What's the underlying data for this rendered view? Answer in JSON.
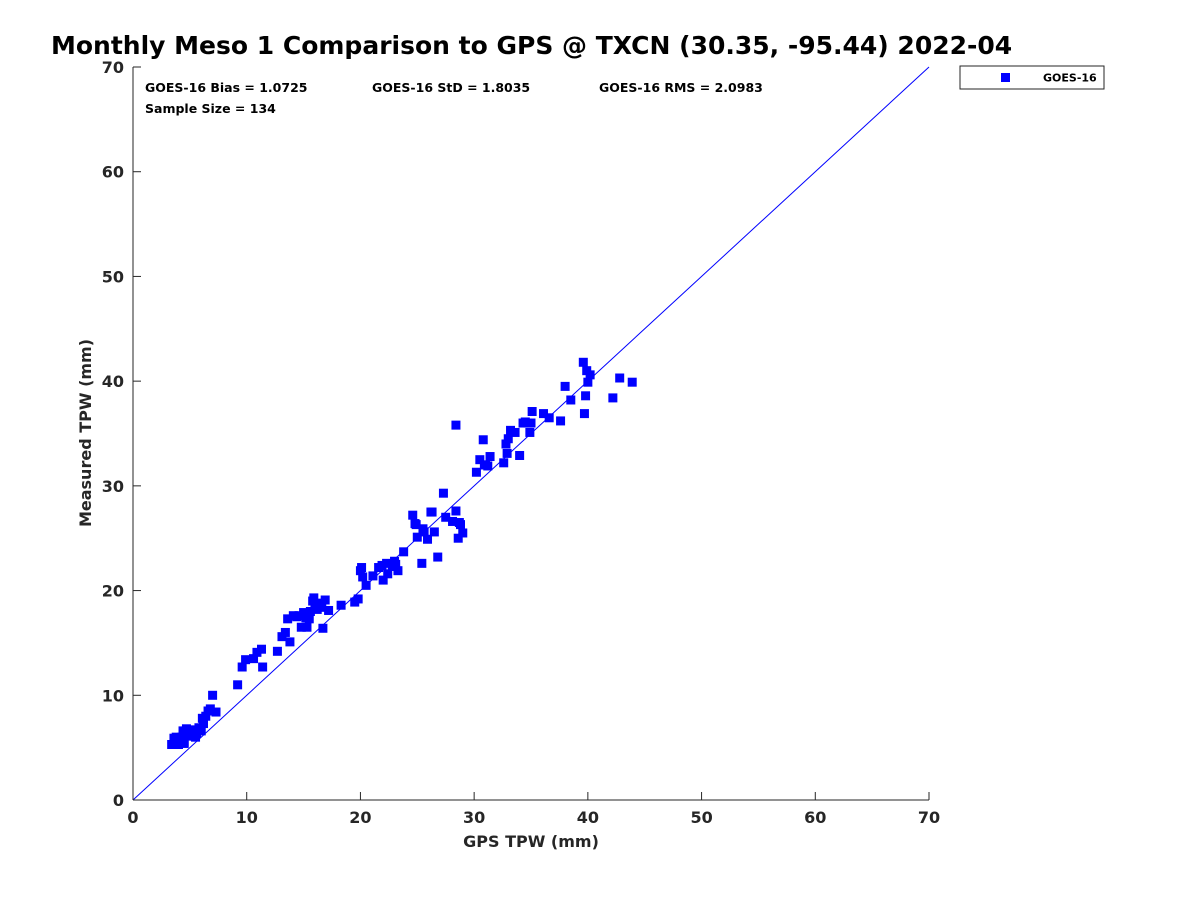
{
  "chart_data": {
    "type": "scatter",
    "title": "Monthly Meso 1 Comparison to GPS @ TXCN (30.35, -95.44) 2022-04",
    "xlabel": "GPS TPW (mm)",
    "ylabel": "Measured TPW (mm)",
    "xlim": [
      0,
      70
    ],
    "ylim": [
      0,
      70
    ],
    "xticks": [
      0,
      10,
      20,
      30,
      40,
      50,
      60,
      70
    ],
    "yticks": [
      0,
      10,
      20,
      30,
      40,
      50,
      60,
      70
    ],
    "grid": false,
    "legend_position": "top-right-outside",
    "reference_line": {
      "from": [
        0,
        0
      ],
      "to": [
        70,
        70
      ],
      "color": "#0000ff"
    },
    "stats": {
      "bias": "GOES-16 Bias = 1.0725",
      "std": "GOES-16 StD = 1.8035",
      "rms": "GOES-16 RMS = 2.0983",
      "sample": "Sample Size = 134"
    },
    "series": [
      {
        "name": "GOES-16",
        "color": "#0000ff",
        "marker": "square",
        "x": [
          3.4,
          3.7,
          3.9,
          4.0,
          4.2,
          4.3,
          4.5,
          4.6,
          4.7,
          4.9,
          3.6,
          4.1,
          4.4,
          5.0,
          5.2,
          5.4,
          5.6,
          5.8,
          6.0,
          6.2,
          6.4,
          6.6,
          6.8,
          7.0,
          7.3,
          4.8,
          5.5,
          6.1,
          3.8,
          4.5,
          9.2,
          9.6,
          9.9,
          10.6,
          10.9,
          11.3,
          11.4,
          12.7,
          13.1,
          13.4,
          13.6,
          13.8,
          14.1,
          14.4,
          14.8,
          15.0,
          15.3,
          15.5,
          15.8,
          16.0,
          16.3,
          16.5,
          16.7,
          16.9,
          17.2,
          14.6,
          15.2,
          15.6,
          15.9,
          16.2,
          16.6,
          18.3,
          19.5,
          19.8,
          20.0,
          20.2,
          20.5,
          21.1,
          21.6,
          22.0,
          22.4,
          22.8,
          23.1,
          23.3,
          20.1,
          21.9,
          22.3,
          23.0,
          23.8,
          24.6,
          24.8,
          25.0,
          25.4,
          25.6,
          25.9,
          26.2,
          26.5,
          26.8,
          27.3,
          27.5,
          28.1,
          28.4,
          28.6,
          28.8,
          29.0,
          25.5,
          26.3,
          28.7,
          24.9,
          30.2,
          30.5,
          30.8,
          31.0,
          31.4,
          32.6,
          32.9,
          33.2,
          33.6,
          34.0,
          34.3,
          34.7,
          35.1,
          36.1,
          36.6,
          37.6,
          38.0,
          38.5,
          39.6,
          39.8,
          40.0,
          39.9,
          40.2,
          39.7,
          42.2,
          42.8,
          43.9,
          34.9,
          33.0,
          30.9,
          28.4,
          34.5,
          35.0,
          31.2,
          32.8
        ],
        "y": [
          5.3,
          5.5,
          5.8,
          5.3,
          5.6,
          6.0,
          5.4,
          6.2,
          6.8,
          6.5,
          5.9,
          5.7,
          6.6,
          6.3,
          6.7,
          6.1,
          6.4,
          6.9,
          6.6,
          7.3,
          8.0,
          8.5,
          8.7,
          10.0,
          8.4,
          6.1,
          6.0,
          7.8,
          6.0,
          5.5,
          11.0,
          12.7,
          13.4,
          13.5,
          14.1,
          14.4,
          12.7,
          14.2,
          15.6,
          16.0,
          17.3,
          15.1,
          17.6,
          17.5,
          16.5,
          17.9,
          16.5,
          17.3,
          19.0,
          18.5,
          18.8,
          18.4,
          16.4,
          19.1,
          18.1,
          17.6,
          17.4,
          18.0,
          19.3,
          18.2,
          18.6,
          18.6,
          18.9,
          19.2,
          21.9,
          21.3,
          20.5,
          21.4,
          22.2,
          21.0,
          21.6,
          22.3,
          22.5,
          21.9,
          22.2,
          22.4,
          22.6,
          22.8,
          23.7,
          27.2,
          26.4,
          25.1,
          22.6,
          25.6,
          24.9,
          27.5,
          25.6,
          23.2,
          29.3,
          27.0,
          26.6,
          27.6,
          25.0,
          26.3,
          25.5,
          25.9,
          27.5,
          26.5,
          26.3,
          31.3,
          32.5,
          34.4,
          32.0,
          32.8,
          32.2,
          33.1,
          35.3,
          35.1,
          32.9,
          36.0,
          36.0,
          37.1,
          36.9,
          36.5,
          36.2,
          39.5,
          38.2,
          41.8,
          38.6,
          39.9,
          41.0,
          40.6,
          36.9,
          38.4,
          40.3,
          39.9,
          35.1,
          34.5,
          32.0,
          35.8,
          36.1,
          36.0,
          31.9,
          34.0
        ]
      }
    ]
  }
}
